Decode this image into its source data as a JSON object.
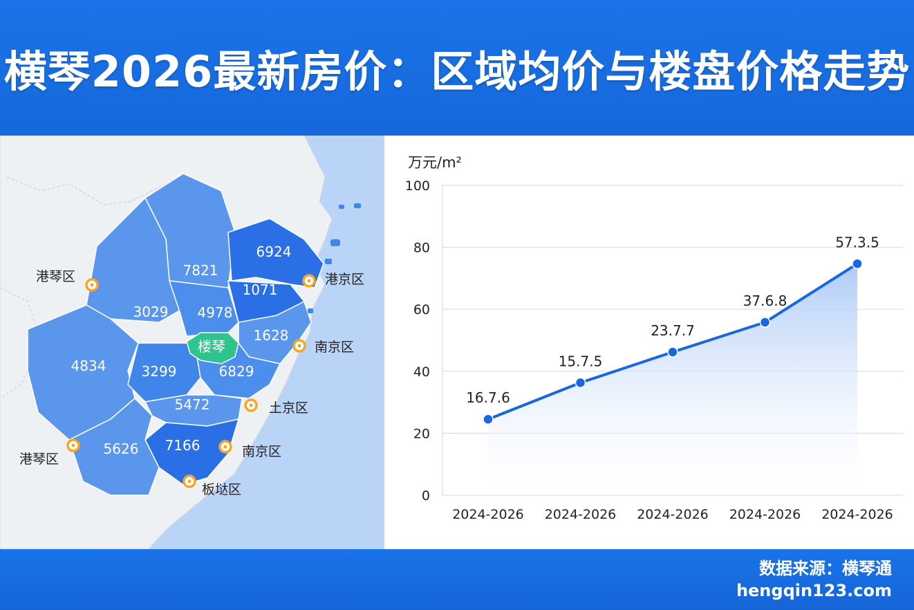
{
  "header": {
    "title": "横琴2026最新房价：区域均价与楼盘价格走势"
  },
  "map": {
    "districts": [
      {
        "id": "d-6924",
        "value": "6924",
        "highlight": false
      },
      {
        "id": "d-7821",
        "value": "7821",
        "highlight": false
      },
      {
        "id": "d-1071",
        "value": "1071",
        "highlight": false
      },
      {
        "id": "d-3029",
        "value": "3029",
        "highlight": false
      },
      {
        "id": "d-4978",
        "value": "4978",
        "highlight": false
      },
      {
        "id": "d-1628",
        "value": "1628",
        "highlight": false
      },
      {
        "id": "d-4834",
        "value": "4834",
        "highlight": false
      },
      {
        "id": "d-3299",
        "value": "3299",
        "highlight": false
      },
      {
        "id": "d-6829",
        "value": "6829",
        "highlight": false
      },
      {
        "id": "d-5472",
        "value": "5472",
        "highlight": false
      },
      {
        "id": "d-5626",
        "value": "5626",
        "highlight": false
      },
      {
        "id": "d-7166",
        "value": "7166",
        "highlight": false
      }
    ],
    "highlight_label": "楼琴",
    "places": [
      {
        "id": "p1",
        "name": "港琴区"
      },
      {
        "id": "p2",
        "name": "港京区"
      },
      {
        "id": "p3",
        "name": "南京区"
      },
      {
        "id": "p4",
        "name": "土京区"
      },
      {
        "id": "p5",
        "name": "港琴区"
      },
      {
        "id": "p6",
        "name": "南京区"
      },
      {
        "id": "p7",
        "name": "板垯区"
      }
    ],
    "colors": {
      "sea": "#b9d4f7",
      "land": "#eef1f4",
      "district_light": "#5a96ec",
      "district_mid": "#3f85ea",
      "district_dark": "#2a6fe6",
      "highlight": "#2fc48d",
      "marker": "#f5a623"
    }
  },
  "chart_data": {
    "type": "line",
    "ylabel": "万元/m²",
    "ylim": [
      0,
      100
    ],
    "yticks": [
      0,
      20,
      40,
      60,
      80,
      100
    ],
    "categories": [
      "2024-2026",
      "2024-2026",
      "2024-2026",
      "2024-2026",
      "2024-2026"
    ],
    "values": [
      24.5,
      36.3,
      46.2,
      55.8,
      74.7
    ],
    "data_labels": [
      "16.7.6",
      "15.7.5",
      "23.7.7",
      "37.6.8",
      "57.3.5"
    ],
    "grid": true,
    "colors": {
      "line": "#1a66e0",
      "area_top": "#a9c8f6",
      "area_bottom": "#ffffff",
      "grid": "#d9dde6"
    }
  },
  "footer": {
    "source": "数据来源：横琴通",
    "url": "hengqin123.com"
  }
}
